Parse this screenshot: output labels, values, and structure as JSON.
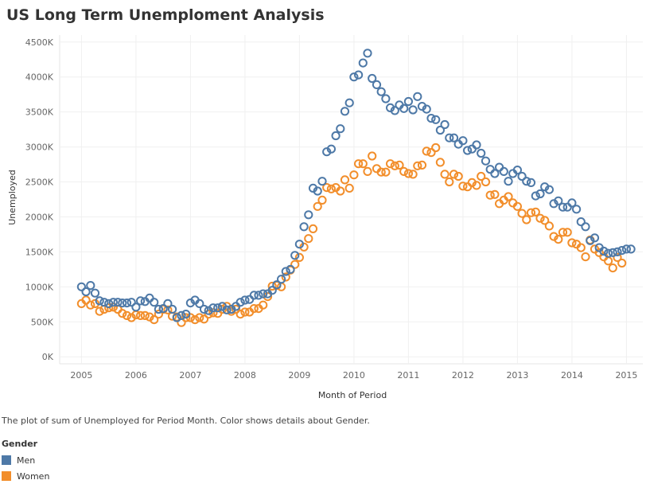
{
  "title": "US Long Term Unemploment Analysis",
  "caption": "The plot of sum of Unemployed for Period Month.  Color shows details about Gender.",
  "legend": {
    "title": "Gender",
    "items": [
      {
        "label": "Men",
        "color": "#4e79a7"
      },
      {
        "label": "Women",
        "color": "#f28e2b"
      }
    ]
  },
  "chart_data": {
    "type": "scatter",
    "xlabel": "Month of Period",
    "ylabel": "Unemployed",
    "xlim": [
      2004.6,
      2015.3
    ],
    "ylim": [
      -100,
      4600
    ],
    "x_ticks": [
      2005,
      2006,
      2007,
      2008,
      2009,
      2010,
      2011,
      2012,
      2013,
      2014,
      2015
    ],
    "x_tick_labels": [
      "2005",
      "2006",
      "2007",
      "2008",
      "2009",
      "2010",
      "2011",
      "2012",
      "2013",
      "2014",
      "2015"
    ],
    "y_ticks": [
      0,
      500,
      1000,
      1500,
      2000,
      2500,
      3000,
      3500,
      4000,
      4500
    ],
    "y_tick_labels": [
      "0K",
      "500K",
      "1000K",
      "1500K",
      "2000K",
      "2500K",
      "3000K",
      "3500K",
      "4000K",
      "4500K"
    ],
    "grid": true,
    "marker": "open-circle",
    "series": [
      {
        "name": "Men",
        "color": "#4e79a7",
        "x_start": 2005.0,
        "x_step": 0.08333,
        "values": [
          1000,
          930,
          1020,
          910,
          800,
          780,
          760,
          780,
          780,
          770,
          770,
          780,
          710,
          800,
          790,
          840,
          780,
          680,
          690,
          760,
          680,
          560,
          590,
          610,
          770,
          810,
          760,
          680,
          660,
          700,
          700,
          720,
          670,
          680,
          720,
          780,
          810,
          820,
          880,
          880,
          900,
          900,
          950,
          1030,
          1110,
          1220,
          1250,
          1450,
          1610,
          1860,
          2030,
          2410,
          2370,
          2510,
          2930,
          2970,
          3160,
          3260,
          3510,
          3630,
          4000,
          4030,
          4200,
          4340,
          3980,
          3890,
          3790,
          3690,
          3560,
          3520,
          3600,
          3550,
          3650,
          3530,
          3720,
          3580,
          3540,
          3410,
          3390,
          3240,
          3320,
          3130,
          3130,
          3040,
          3090,
          2950,
          2970,
          3030,
          2910,
          2800,
          2680,
          2620,
          2710,
          2650,
          2510,
          2620,
          2670,
          2580,
          2510,
          2490,
          2300,
          2330,
          2430,
          2390,
          2190,
          2230,
          2140,
          2140,
          2200,
          2110,
          1930,
          1860,
          1660,
          1700,
          1560,
          1510,
          1480,
          1490,
          1500,
          1520,
          1540,
          1540
        ]
      },
      {
        "name": "Women",
        "color": "#f28e2b",
        "x_start": 2005.0,
        "x_step": 0.08333,
        "values": [
          760,
          810,
          740,
          760,
          650,
          680,
          700,
          710,
          680,
          620,
          590,
          560,
          600,
          590,
          590,
          570,
          530,
          610,
          680,
          670,
          580,
          570,
          490,
          560,
          560,
          530,
          560,
          540,
          610,
          630,
          620,
          680,
          720,
          650,
          680,
          610,
          640,
          640,
          690,
          690,
          740,
          860,
          1010,
          1020,
          1000,
          1140,
          1240,
          1320,
          1420,
          1570,
          1690,
          1830,
          2150,
          2240,
          2420,
          2400,
          2420,
          2370,
          2530,
          2410,
          2600,
          2760,
          2760,
          2650,
          2870,
          2690,
          2640,
          2640,
          2760,
          2730,
          2740,
          2650,
          2620,
          2610,
          2730,
          2740,
          2940,
          2920,
          2990,
          2780,
          2610,
          2500,
          2610,
          2580,
          2440,
          2430,
          2490,
          2450,
          2580,
          2500,
          2310,
          2320,
          2190,
          2240,
          2290,
          2200,
          2150,
          2050,
          1960,
          2060,
          2070,
          1980,
          1950,
          1870,
          1720,
          1680,
          1780,
          1780,
          1630,
          1610,
          1560,
          1430,
          1670,
          1540,
          1490,
          1430,
          1370,
          1270,
          1420,
          1340
        ]
      }
    ]
  }
}
